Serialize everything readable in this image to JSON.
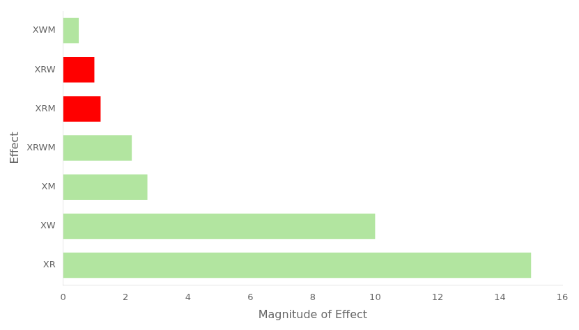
{
  "chart_data": {
    "type": "bar",
    "orientation": "horizontal",
    "categories": [
      "XR",
      "XW",
      "XM",
      "XRWM",
      "XRM",
      "XRW",
      "XWM"
    ],
    "values": [
      15.0,
      10.0,
      2.7,
      2.2,
      1.2,
      1.0,
      0.5
    ],
    "colors": [
      "#b2e5a0",
      "#b2e5a0",
      "#b2e5a0",
      "#b2e5a0",
      "#ff0000",
      "#ff0000",
      "#b2e5a0"
    ],
    "xlabel": "Magnitude of Effect",
    "ylabel": "Effect",
    "xlim": [
      0,
      16
    ],
    "xticks": [
      0,
      2,
      4,
      6,
      8,
      10,
      12,
      14,
      16
    ],
    "grid": false
  }
}
